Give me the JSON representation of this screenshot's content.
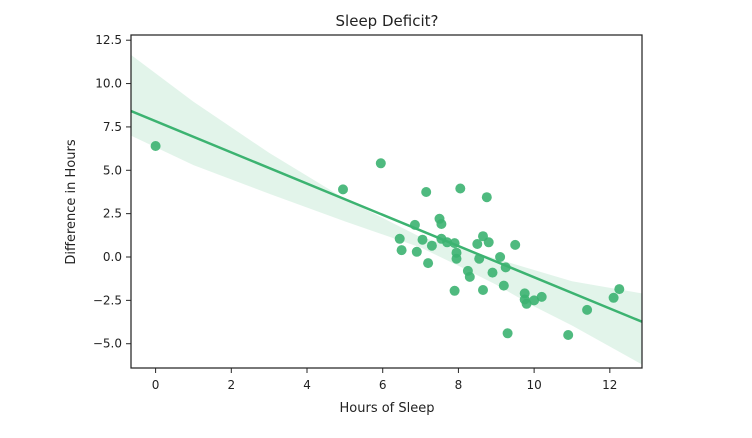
{
  "chart_data": {
    "type": "scatter",
    "title": "Sleep Deficit?",
    "xlabel": "Hours of Sleep",
    "ylabel": "Difference in Hours",
    "xlim": [
      -0.65,
      12.85
    ],
    "ylim": [
      -6.4,
      12.8
    ],
    "xticks": [
      0,
      2,
      4,
      6,
      8,
      10,
      12
    ],
    "yticks": [
      -5.0,
      -2.5,
      0.0,
      2.5,
      5.0,
      7.5,
      10.0,
      12.5
    ],
    "xtick_labels": [
      "0",
      "2",
      "4",
      "6",
      "8",
      "10",
      "12"
    ],
    "ytick_labels": [
      "−5.0",
      "−2.5",
      "0.0",
      "2.5",
      "5.0",
      "7.5",
      "10.0",
      "12.5"
    ],
    "grid": false,
    "point_color": "#3cb371",
    "band_color": "#3cb371",
    "series": [
      {
        "points": [
          [
            0.0,
            6.4
          ],
          [
            4.95,
            3.9
          ],
          [
            5.95,
            5.4
          ],
          [
            6.45,
            1.05
          ],
          [
            6.5,
            0.4
          ],
          [
            6.85,
            1.85
          ],
          [
            6.9,
            0.3
          ],
          [
            7.05,
            1.0
          ],
          [
            7.15,
            3.75
          ],
          [
            7.2,
            -0.35
          ],
          [
            7.3,
            0.65
          ],
          [
            7.5,
            2.2
          ],
          [
            7.55,
            1.05
          ],
          [
            7.55,
            1.9
          ],
          [
            7.7,
            0.85
          ],
          [
            7.9,
            -1.95
          ],
          [
            7.9,
            0.8
          ],
          [
            7.95,
            -0.1
          ],
          [
            7.95,
            0.25
          ],
          [
            8.05,
            3.95
          ],
          [
            8.25,
            -0.8
          ],
          [
            8.3,
            -1.15
          ],
          [
            8.5,
            0.75
          ],
          [
            8.55,
            -0.1
          ],
          [
            8.65,
            -1.9
          ],
          [
            8.65,
            1.2
          ],
          [
            8.75,
            3.45
          ],
          [
            8.8,
            0.85
          ],
          [
            8.9,
            -0.9
          ],
          [
            9.1,
            0.0
          ],
          [
            9.2,
            -1.65
          ],
          [
            9.25,
            -0.6
          ],
          [
            9.3,
            -4.4
          ],
          [
            9.5,
            0.7
          ],
          [
            9.75,
            -2.1
          ],
          [
            9.75,
            -2.45
          ],
          [
            9.8,
            -2.7
          ],
          [
            10.0,
            -2.5
          ],
          [
            10.2,
            -2.3
          ],
          [
            10.9,
            -4.5
          ],
          [
            11.4,
            -3.05
          ],
          [
            12.1,
            -2.35
          ],
          [
            12.25,
            -1.85
          ]
        ]
      }
    ],
    "regression": {
      "slope": -0.9,
      "intercept": 7.83,
      "ci_band": [
        [
          -0.65,
          7.0,
          11.65
        ],
        [
          1.0,
          5.3,
          8.95
        ],
        [
          3.0,
          3.65,
          6.0
        ],
        [
          5.0,
          2.05,
          3.35
        ],
        [
          7.0,
          0.55,
          1.15
        ],
        [
          8.0,
          -0.5,
          0.55
        ],
        [
          9.0,
          -1.6,
          -0.1
        ],
        [
          10.0,
          -2.85,
          -0.75
        ],
        [
          11.0,
          -3.95,
          -1.4
        ],
        [
          12.85,
          -6.2,
          -2.1
        ]
      ]
    }
  }
}
